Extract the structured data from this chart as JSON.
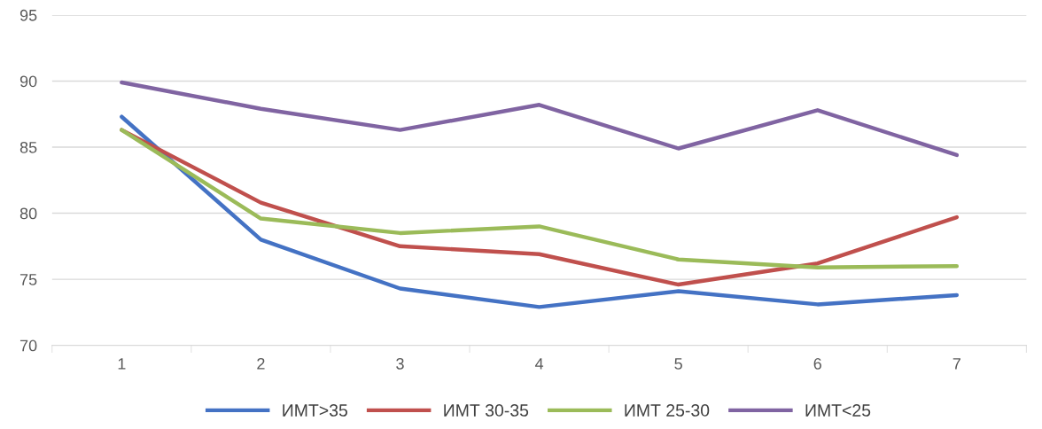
{
  "chart_data": {
    "type": "line",
    "categories": [
      "1",
      "2",
      "3",
      "4",
      "5",
      "6",
      "7"
    ],
    "series": [
      {
        "name": "ИМТ>35",
        "color": "#4472c4",
        "values": [
          87.3,
          78.0,
          74.3,
          72.9,
          74.1,
          73.1,
          73.8
        ]
      },
      {
        "name": "ИМТ 30-35",
        "color": "#c0504d",
        "values": [
          86.3,
          80.8,
          77.5,
          76.9,
          74.6,
          76.2,
          79.7
        ]
      },
      {
        "name": "ИМТ 25-30",
        "color": "#9bbb59",
        "values": [
          86.3,
          79.6,
          78.5,
          79.0,
          76.5,
          75.9,
          76.0
        ]
      },
      {
        "name": "ИМТ<25",
        "color": "#8064a2",
        "values": [
          89.9,
          87.9,
          86.3,
          88.2,
          84.9,
          87.8,
          84.4
        ]
      }
    ],
    "ylim": [
      70,
      95
    ],
    "yticks": [
      70,
      75,
      80,
      85,
      90,
      95
    ],
    "grid": "y",
    "legend": "bottom",
    "marker": "none",
    "line_style": "solid"
  }
}
